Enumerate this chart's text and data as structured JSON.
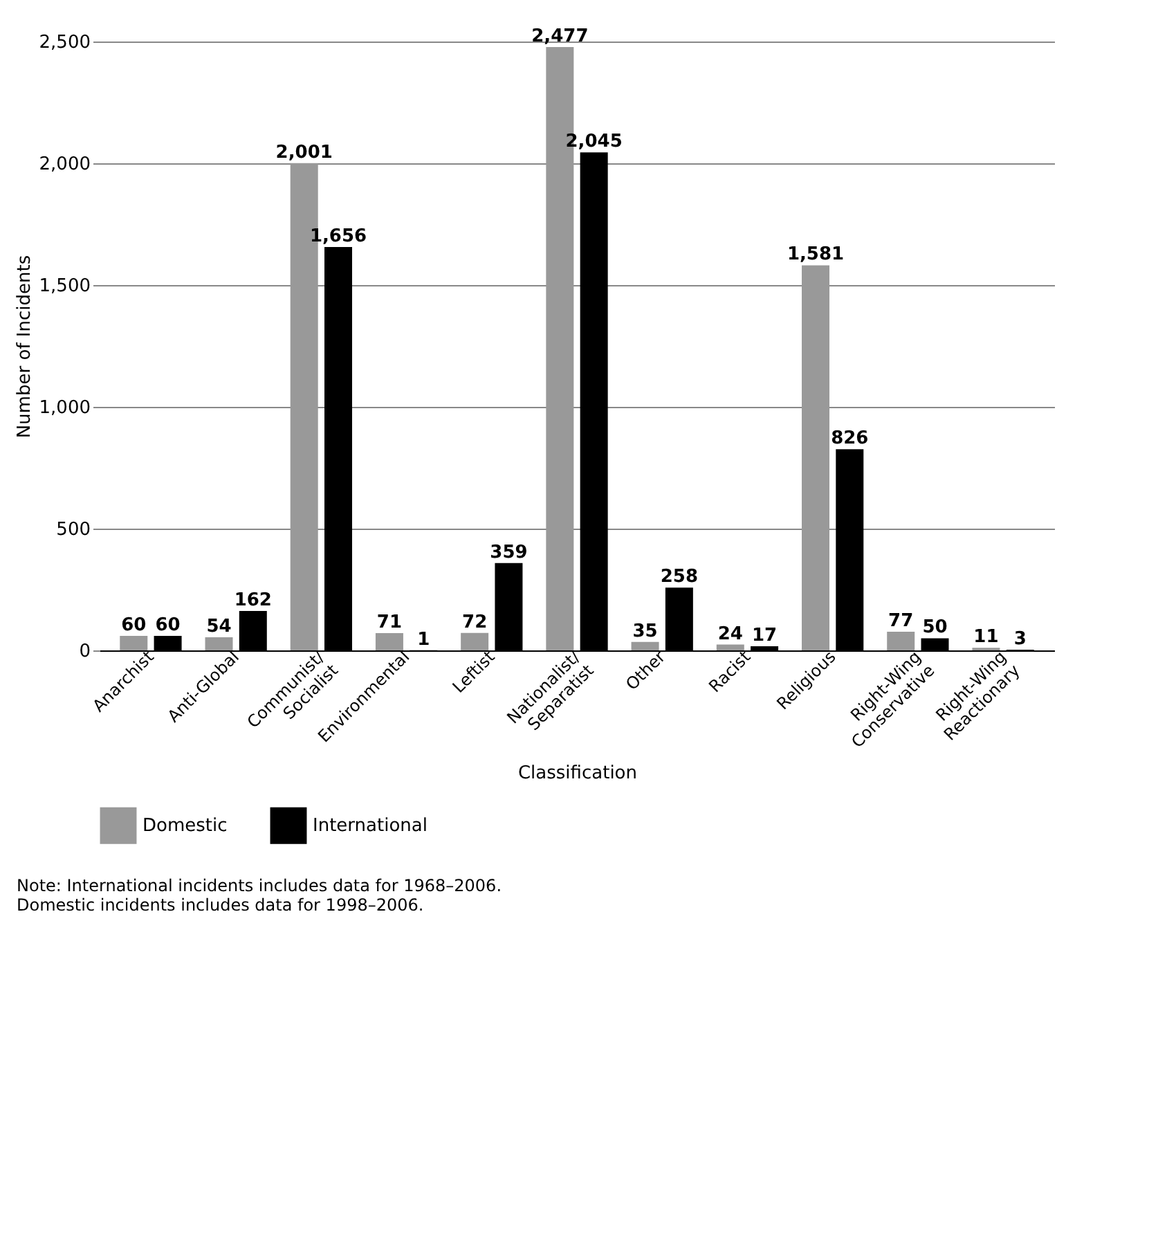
{
  "chart_data": {
    "type": "bar",
    "xlabel": "Classification",
    "ylabel": "Number of Incidents",
    "categories": [
      "Anarchist",
      "Anti-Global",
      "Communist/\nSocialist",
      "Environmental",
      "Leftist",
      "Nationalist/\nSeparatist",
      "Other",
      "Racist",
      "Religious",
      "Right-Wing\nConservative",
      "Right-Wing\nReactionary"
    ],
    "series": [
      {
        "name": "Domestic",
        "color": "#999999",
        "values": [
          60,
          54,
          2001,
          71,
          72,
          2477,
          35,
          24,
          1581,
          77,
          11
        ],
        "value_labels": [
          "60",
          "54",
          "2,001",
          "71",
          "72",
          "2,477",
          "35",
          "24",
          "1,581",
          "77",
          "11"
        ]
      },
      {
        "name": "International",
        "color": "#000000",
        "values": [
          60,
          162,
          1656,
          1,
          359,
          2045,
          258,
          17,
          826,
          50,
          3
        ],
        "value_labels": [
          "60",
          "162",
          "1,656",
          "1",
          "359",
          "2,045",
          "258",
          "17",
          "826",
          "50",
          "3"
        ]
      }
    ],
    "ylim": [
      0,
      2500
    ],
    "yticks": [
      0,
      {
        "value": 500,
        "label": "500"
      },
      {
        "value": 1000,
        "label": "1,000"
      },
      {
        "value": 1500,
        "label": "1,500"
      },
      {
        "value": 2000,
        "label": "2,000"
      },
      {
        "value": 2500,
        "label": "2,500"
      }
    ],
    "grid": "y",
    "legend": "bottom",
    "annotations": [
      "Note: International incidents includes data for 1968–2006.",
      "Domestic incidents includes data for 1998–2006."
    ]
  }
}
